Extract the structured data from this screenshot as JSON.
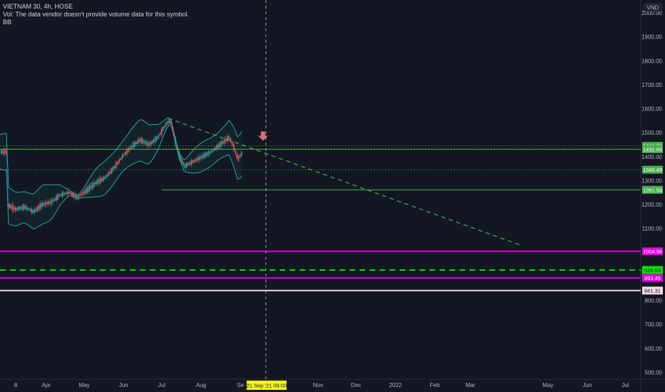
{
  "legend": {
    "title": "VIETNAM 30, 4h, HOSE",
    "volume_note": "Vol: The data vendor doesn't provide volume data for this symbol.",
    "indicator": "BB"
  },
  "currency": "VND",
  "chart_data": {
    "type": "candlestick",
    "ylim": [
      490,
      2020
    ],
    "y_ticks": [
      "2000.00",
      "1900.00",
      "1800.00",
      "1700.00",
      "1600.00",
      "1500.00",
      "1400.00",
      "1300.00",
      "1200.00",
      "1100.00",
      "1000.00",
      "900.00",
      "800.00",
      "700.00",
      "600.00",
      "500.00"
    ],
    "y_tick_values": [
      2000,
      1900,
      1800,
      1700,
      1600,
      1500,
      1400,
      1300,
      1200,
      1100,
      1000,
      900,
      800,
      700,
      600,
      500
    ],
    "x_ticks": [
      "8",
      "Apr",
      "May",
      "Jun",
      "Jul",
      "Aug",
      "Se",
      "Nov",
      "Dec",
      "2022",
      "Feb",
      "Mar",
      "May",
      "Jun",
      "Jul"
    ],
    "x_tick_dates": [
      "2021-03-08",
      "2021-04-01",
      "2021-05-01",
      "2021-06-01",
      "2021-07-01",
      "2021-08-01",
      "2021-09-01",
      "2021-11-01",
      "2021-12-01",
      "2022-01-01",
      "2022-02-01",
      "2022-03-01",
      "2022-05-01",
      "2022-06-01",
      "2022-07-01"
    ],
    "crosshair_label": "21 Sep '21  09:00",
    "crosshair_date": "2021-09-21",
    "price_path": [
      [
        "2021-03-01",
        1200
      ],
      [
        "2021-03-08",
        1180
      ],
      [
        "2021-03-15",
        1190
      ],
      [
        "2021-03-22",
        1170
      ],
      [
        "2021-03-29",
        1200
      ],
      [
        "2021-04-05",
        1210
      ],
      [
        "2021-04-12",
        1240
      ],
      [
        "2021-04-19",
        1250
      ],
      [
        "2021-04-26",
        1230
      ],
      [
        "2021-05-03",
        1260
      ],
      [
        "2021-05-10",
        1290
      ],
      [
        "2021-05-17",
        1310
      ],
      [
        "2021-05-24",
        1350
      ],
      [
        "2021-05-31",
        1400
      ],
      [
        "2021-06-07",
        1440
      ],
      [
        "2021-06-14",
        1470
      ],
      [
        "2021-06-21",
        1450
      ],
      [
        "2021-06-28",
        1480
      ],
      [
        "2021-07-05",
        1540
      ],
      [
        "2021-07-08",
        1550
      ],
      [
        "2021-07-12",
        1460
      ],
      [
        "2021-07-15",
        1400
      ],
      [
        "2021-07-19",
        1360
      ],
      [
        "2021-07-26",
        1380
      ],
      [
        "2021-08-02",
        1400
      ],
      [
        "2021-08-09",
        1420
      ],
      [
        "2021-08-16",
        1450
      ],
      [
        "2021-08-23",
        1480
      ],
      [
        "2021-08-26",
        1450
      ],
      [
        "2021-08-30",
        1390
      ],
      [
        "2021-09-03",
        1420
      ]
    ],
    "trendline": {
      "start": [
        "2021-07-06",
        1560
      ],
      "end": [
        "2022-04-10",
        1030
      ]
    },
    "signal_arrow": [
      "2021-09-21",
      1475
    ],
    "horizontal_levels": [
      {
        "value": 1444.86,
        "label": "1444.86",
        "color": "#4caf50",
        "style": "dotted",
        "from": "2021-01-01"
      },
      {
        "value": 1431.05,
        "label": "1431.05",
        "color": "#4caf50",
        "style": "solid",
        "from": "2021-01-01"
      },
      {
        "value": 1345.49,
        "label": "1345.49",
        "color": "#4caf50",
        "style": "dotted",
        "from": "2021-01-01"
      },
      {
        "value": 1261.59,
        "label": "1261.59",
        "color": "#4caf50",
        "style": "solid",
        "from": "2021-07-01"
      },
      {
        "value": 1004.96,
        "label": "1004.96",
        "color": "#e100e0",
        "style": "solid",
        "from": "2021-01-01"
      },
      {
        "value": 926.93,
        "label": "926.93",
        "color": "#00e600",
        "style": "dashed",
        "from": "2021-01-01"
      },
      {
        "value": 893.45,
        "label": "893.45",
        "color": "#e100e0",
        "style": "solid",
        "from": "2021-01-01"
      },
      {
        "value": 841.31,
        "label": "841.31",
        "color": "#f8d7e6",
        "style": "solid",
        "from": "2021-01-01"
      }
    ],
    "grid": false
  }
}
